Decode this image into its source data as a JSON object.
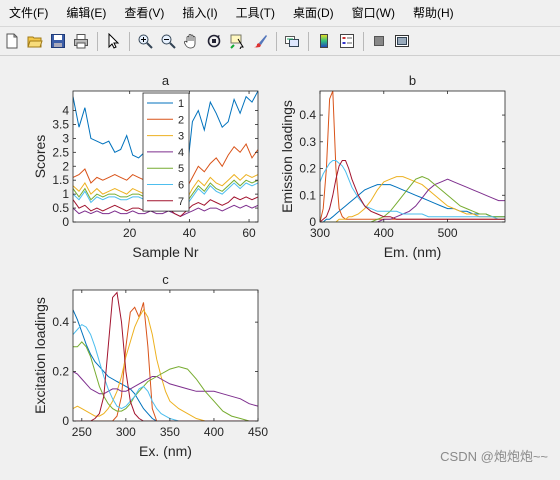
{
  "menu": [
    {
      "label": "文件(F)",
      "name": "menu-file"
    },
    {
      "label": "编辑(E)",
      "name": "menu-edit"
    },
    {
      "label": "查看(V)",
      "name": "menu-view"
    },
    {
      "label": "插入(I)",
      "name": "menu-insert"
    },
    {
      "label": "工具(T)",
      "name": "menu-tools"
    },
    {
      "label": "桌面(D)",
      "name": "menu-desktop"
    },
    {
      "label": "窗口(W)",
      "name": "menu-window"
    },
    {
      "label": "帮助(H)",
      "name": "menu-help"
    }
  ],
  "toolbar": [
    {
      "icon": "new-figure-icon",
      "group": 0
    },
    {
      "icon": "open-file-icon",
      "group": 0
    },
    {
      "icon": "save-icon",
      "group": 0
    },
    {
      "icon": "print-icon",
      "group": 0
    },
    {
      "icon": "edit-plot-arrow-icon",
      "group": 1
    },
    {
      "icon": "zoom-in-icon",
      "group": 2
    },
    {
      "icon": "zoom-out-icon",
      "group": 2
    },
    {
      "icon": "pan-hand-icon",
      "group": 2
    },
    {
      "icon": "rotate-3d-icon",
      "group": 2
    },
    {
      "icon": "data-cursor-icon",
      "group": 2
    },
    {
      "icon": "brush-icon",
      "group": 2
    },
    {
      "icon": "link-plot-icon",
      "group": 3
    },
    {
      "icon": "colorbar-icon",
      "group": 4
    },
    {
      "icon": "legend-icon",
      "group": 4
    },
    {
      "icon": "hide-plot-tools-icon",
      "group": 5
    },
    {
      "icon": "show-plot-tools-icon",
      "group": 5
    }
  ],
  "colors": {
    "series": [
      "#0072bd",
      "#d95319",
      "#edb120",
      "#7e2f8e",
      "#77ac30",
      "#4dbeee",
      "#a2142f"
    ]
  },
  "watermark": "CSDN @炮炮炮~~",
  "chart_data": [
    {
      "panel": "a",
      "type": "line",
      "title": "a",
      "xlabel": "Sample Nr",
      "ylabel": "Scores",
      "xlim": [
        1,
        63
      ],
      "ylim": [
        0,
        4.7
      ],
      "xticks": [
        20,
        40,
        60
      ],
      "yticks": [
        0,
        0.5,
        1,
        1.5,
        2,
        2.5,
        3,
        3.5,
        4
      ],
      "legend": {
        "location": "inside-top",
        "entries": [
          "1",
          "2",
          "3",
          "4",
          "5",
          "6",
          "7"
        ]
      },
      "x": [
        1,
        3,
        5,
        7,
        9,
        11,
        13,
        15,
        17,
        19,
        21,
        23,
        25,
        27,
        29,
        31,
        33,
        35,
        37,
        39,
        41,
        43,
        45,
        47,
        49,
        51,
        53,
        55,
        57,
        59,
        61,
        63
      ],
      "series": [
        {
          "name": "1",
          "values": [
            4.5,
            3.4,
            4.1,
            3.0,
            2.9,
            2.8,
            2.9,
            2.5,
            2.6,
            3.1,
            2.4,
            2.3,
            2.5,
            2.2,
            2.6,
            2.4,
            2.0,
            1.5,
            1.1,
            1.6,
            3.6,
            4.0,
            3.3,
            4.3,
            3.9,
            3.4,
            3.6,
            4.4,
            3.9,
            4.5,
            4.3,
            4.7
          ]
        },
        {
          "name": "2",
          "values": [
            1.6,
            1.7,
            1.9,
            1.4,
            1.6,
            1.5,
            1.6,
            1.7,
            1.6,
            1.5,
            1.7,
            1.6,
            1.5,
            1.7,
            1.6,
            1.4,
            1.6,
            1.3,
            1.0,
            1.2,
            1.6,
            2.0,
            1.8,
            2.1,
            2.3,
            2.0,
            2.4,
            2.7,
            2.5,
            2.8,
            2.3,
            2.6
          ]
        },
        {
          "name": "3",
          "values": [
            1.3,
            1.1,
            1.4,
            1.0,
            1.2,
            1.0,
            1.1,
            1.2,
            1.1,
            1.0,
            1.2,
            1.1,
            1.0,
            1.2,
            1.0,
            0.9,
            1.1,
            0.8,
            0.6,
            0.8,
            1.2,
            1.5,
            1.3,
            1.6,
            1.4,
            1.3,
            1.5,
            1.7,
            1.5,
            1.7,
            1.6,
            1.7
          ]
        },
        {
          "name": "4",
          "values": [
            0.5,
            0.3,
            0.4,
            0.3,
            0.4,
            0.3,
            0.3,
            0.4,
            0.3,
            0.3,
            0.4,
            0.3,
            0.3,
            0.4,
            0.3,
            0.3,
            0.4,
            0.3,
            0.2,
            0.3,
            0.4,
            0.5,
            0.4,
            0.5,
            0.5,
            0.4,
            0.5,
            0.6,
            0.5,
            0.6,
            0.5,
            0.6
          ]
        },
        {
          "name": "5",
          "values": [
            1.2,
            0.9,
            1.2,
            0.8,
            1.0,
            0.9,
            1.0,
            1.0,
            0.9,
            0.9,
            1.0,
            1.0,
            0.9,
            1.0,
            0.9,
            0.8,
            0.9,
            0.7,
            0.5,
            0.7,
            1.0,
            1.3,
            1.1,
            1.4,
            1.2,
            1.1,
            1.3,
            1.5,
            1.3,
            1.5,
            1.4,
            1.5
          ]
        },
        {
          "name": "6",
          "values": [
            1.0,
            0.8,
            1.1,
            0.7,
            0.9,
            0.8,
            0.9,
            0.9,
            0.8,
            0.8,
            0.9,
            0.9,
            0.8,
            0.9,
            0.8,
            0.7,
            0.8,
            0.6,
            0.4,
            0.6,
            0.9,
            1.2,
            1.0,
            1.3,
            1.1,
            1.0,
            1.2,
            1.4,
            1.2,
            1.4,
            1.3,
            1.4
          ]
        },
        {
          "name": "7",
          "values": [
            0.8,
            0.5,
            0.6,
            0.4,
            0.5,
            0.4,
            0.5,
            0.6,
            0.5,
            0.4,
            0.5,
            0.5,
            0.4,
            0.5,
            0.4,
            0.4,
            0.5,
            0.3,
            0.2,
            0.4,
            0.6,
            0.7,
            0.6,
            0.8,
            0.7,
            0.6,
            0.7,
            0.9,
            0.8,
            0.9,
            0.8,
            0.9
          ]
        }
      ]
    },
    {
      "panel": "b",
      "type": "line",
      "title": "b",
      "xlabel": "Em. (nm)",
      "ylabel": "Emission loadings",
      "xlim": [
        300,
        590
      ],
      "ylim": [
        0,
        0.49
      ],
      "xticks": [
        300,
        400,
        500
      ],
      "yticks": [
        0,
        0.1,
        0.2,
        0.3,
        0.4
      ],
      "x": [
        300,
        305,
        310,
        315,
        320,
        325,
        330,
        335,
        340,
        345,
        350,
        360,
        370,
        380,
        390,
        400,
        410,
        420,
        430,
        440,
        450,
        460,
        470,
        480,
        490,
        500,
        510,
        520,
        530,
        540,
        550,
        560,
        570,
        580,
        590
      ],
      "series": [
        {
          "name": "1",
          "values": [
            0.0,
            0.0,
            0.01,
            0.01,
            0.02,
            0.03,
            0.04,
            0.05,
            0.06,
            0.07,
            0.08,
            0.1,
            0.12,
            0.13,
            0.14,
            0.14,
            0.14,
            0.13,
            0.12,
            0.11,
            0.1,
            0.09,
            0.08,
            0.07,
            0.06,
            0.05,
            0.05,
            0.04,
            0.04,
            0.03,
            0.03,
            0.03,
            0.02,
            0.02,
            0.02
          ]
        },
        {
          "name": "2",
          "values": [
            0.0,
            0.05,
            0.2,
            0.46,
            0.49,
            0.2,
            0.05,
            0.02,
            0.01,
            0.01,
            0.01,
            0.01,
            0.01,
            0.01,
            0.01,
            0.01,
            0.01,
            0.01,
            0.01,
            0.01,
            0.01,
            0.01,
            0.01,
            0.01,
            0.01,
            0.01,
            0.01,
            0.01,
            0.01,
            0.01,
            0.01,
            0.01,
            0.01,
            0.01,
            0.01
          ]
        },
        {
          "name": "3",
          "values": [
            0.0,
            0.0,
            0.0,
            0.0,
            0.0,
            0.0,
            0.01,
            0.01,
            0.01,
            0.02,
            0.02,
            0.03,
            0.05,
            0.08,
            0.12,
            0.15,
            0.16,
            0.17,
            0.17,
            0.16,
            0.15,
            0.14,
            0.12,
            0.1,
            0.08,
            0.06,
            0.05,
            0.04,
            0.03,
            0.03,
            0.02,
            0.02,
            0.02,
            0.01,
            0.01
          ]
        },
        {
          "name": "4",
          "values": [
            0.0,
            0.0,
            0.0,
            0.0,
            0.0,
            0.0,
            0.0,
            0.0,
            0.0,
            0.0,
            0.0,
            0.0,
            0.0,
            0.0,
            0.0,
            0.01,
            0.01,
            0.02,
            0.03,
            0.04,
            0.06,
            0.09,
            0.12,
            0.14,
            0.15,
            0.16,
            0.15,
            0.14,
            0.13,
            0.12,
            0.11,
            0.1,
            0.09,
            0.08,
            0.08
          ]
        },
        {
          "name": "5",
          "values": [
            0.0,
            0.0,
            0.0,
            0.0,
            0.0,
            0.0,
            0.0,
            0.0,
            0.0,
            0.0,
            0.0,
            0.0,
            0.0,
            0.0,
            0.01,
            0.02,
            0.04,
            0.07,
            0.1,
            0.13,
            0.16,
            0.17,
            0.16,
            0.14,
            0.12,
            0.1,
            0.08,
            0.06,
            0.05,
            0.04,
            0.03,
            0.03,
            0.02,
            0.02,
            0.02
          ]
        },
        {
          "name": "6",
          "values": [
            0.15,
            0.18,
            0.2,
            0.22,
            0.23,
            0.23,
            0.22,
            0.21,
            0.19,
            0.16,
            0.13,
            0.09,
            0.06,
            0.05,
            0.04,
            0.04,
            0.04,
            0.04,
            0.03,
            0.03,
            0.03,
            0.03,
            0.02,
            0.02,
            0.02,
            0.02,
            0.02,
            0.02,
            0.02,
            0.02,
            0.02,
            0.02,
            0.02,
            0.01,
            0.01
          ]
        },
        {
          "name": "7",
          "values": [
            0.0,
            0.01,
            0.02,
            0.05,
            0.1,
            0.16,
            0.21,
            0.23,
            0.23,
            0.2,
            0.16,
            0.1,
            0.06,
            0.04,
            0.03,
            0.02,
            0.02,
            0.01,
            0.01,
            0.01,
            0.01,
            0.01,
            0.01,
            0.01,
            0.01,
            0.01,
            0.01,
            0.01,
            0.01,
            0.01,
            0.01,
            0.01,
            0.01,
            0.01,
            0.01
          ]
        }
      ]
    },
    {
      "panel": "c",
      "type": "line",
      "title": "c",
      "xlabel": "Ex. (nm)",
      "ylabel": "Excitation loadings",
      "xlim": [
        240,
        450
      ],
      "ylim": [
        0,
        0.53
      ],
      "xticks": [
        250,
        300,
        350,
        400,
        450
      ],
      "yticks": [
        0,
        0.2,
        0.4
      ],
      "x": [
        240,
        245,
        250,
        255,
        260,
        265,
        270,
        275,
        280,
        285,
        290,
        295,
        300,
        305,
        310,
        315,
        320,
        325,
        330,
        335,
        340,
        345,
        350,
        360,
        370,
        380,
        390,
        400,
        410,
        420,
        430,
        440,
        450
      ],
      "series": [
        {
          "name": "1",
          "values": [
            0.45,
            0.41,
            0.36,
            0.31,
            0.27,
            0.24,
            0.22,
            0.2,
            0.18,
            0.17,
            0.16,
            0.15,
            0.14,
            0.13,
            0.11,
            0.08,
            0.05,
            0.03,
            0.01,
            0.0,
            0.0,
            0.0,
            0.0,
            0.0,
            0.0,
            0.0,
            0.0,
            0.0,
            0.0,
            0.0,
            0.0,
            0.0,
            0.0
          ]
        },
        {
          "name": "2",
          "values": [
            0.0,
            0.0,
            0.0,
            0.0,
            0.0,
            0.0,
            0.0,
            0.0,
            0.0,
            0.0,
            0.02,
            0.1,
            0.3,
            0.44,
            0.46,
            0.42,
            0.48,
            0.3,
            0.05,
            0.0,
            0.0,
            0.0,
            0.0,
            0.0,
            0.0,
            0.0,
            0.0,
            0.0,
            0.0,
            0.0,
            0.0,
            0.0,
            0.0
          ]
        },
        {
          "name": "3",
          "values": [
            0.05,
            0.06,
            0.05,
            0.04,
            0.03,
            0.02,
            0.02,
            0.03,
            0.05,
            0.08,
            0.12,
            0.18,
            0.26,
            0.32,
            0.38,
            0.42,
            0.45,
            0.42,
            0.35,
            0.25,
            0.18,
            0.12,
            0.08,
            0.05,
            0.03,
            0.01,
            0.0,
            0.0,
            0.0,
            0.0,
            0.0,
            0.0,
            0.0
          ]
        },
        {
          "name": "4",
          "values": [
            0.2,
            0.19,
            0.17,
            0.15,
            0.13,
            0.12,
            0.11,
            0.11,
            0.12,
            0.13,
            0.13,
            0.12,
            0.12,
            0.13,
            0.14,
            0.15,
            0.16,
            0.17,
            0.18,
            0.18,
            0.17,
            0.16,
            0.15,
            0.14,
            0.13,
            0.12,
            0.12,
            0.12,
            0.11,
            0.1,
            0.09,
            0.07,
            0.06
          ]
        },
        {
          "name": "5",
          "values": [
            0.3,
            0.3,
            0.32,
            0.3,
            0.26,
            0.2,
            0.14,
            0.1,
            0.07,
            0.05,
            0.04,
            0.04,
            0.05,
            0.07,
            0.1,
            0.12,
            0.14,
            0.16,
            0.17,
            0.18,
            0.19,
            0.2,
            0.21,
            0.22,
            0.21,
            0.17,
            0.12,
            0.08,
            0.04,
            0.02,
            0.01,
            0.0,
            0.0
          ]
        },
        {
          "name": "6",
          "values": [
            0.35,
            0.37,
            0.39,
            0.38,
            0.35,
            0.3,
            0.24,
            0.18,
            0.13,
            0.09,
            0.06,
            0.05,
            0.06,
            0.08,
            0.1,
            0.13,
            0.14,
            0.12,
            0.08,
            0.05,
            0.03,
            0.02,
            0.01,
            0.0,
            0.0,
            0.0,
            0.0,
            0.0,
            0.0,
            0.0,
            0.0,
            0.0,
            0.0
          ]
        },
        {
          "name": "7",
          "values": [
            0.0,
            0.0,
            0.0,
            0.0,
            0.0,
            0.01,
            0.03,
            0.1,
            0.3,
            0.5,
            0.52,
            0.4,
            0.2,
            0.08,
            0.03,
            0.01,
            0.0,
            0.0,
            0.0,
            0.0,
            0.0,
            0.0,
            0.0,
            0.0,
            0.0,
            0.0,
            0.0,
            0.0,
            0.0,
            0.0,
            0.0,
            0.0,
            0.0
          ]
        }
      ]
    }
  ]
}
